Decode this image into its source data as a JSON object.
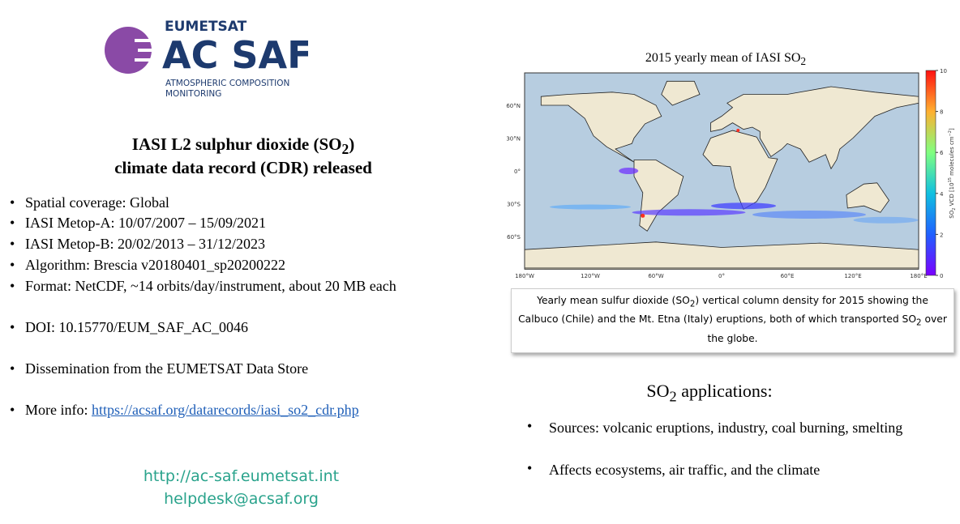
{
  "logo": {
    "org": "EUMETSAT",
    "name": "AC SAF",
    "tagline_1": "ATMOSPHERIC COMPOSITION",
    "tagline_2": "MONITORING"
  },
  "headline": {
    "line_1": [
      "IASI L2 sulphur dioxide (SO",
      "2",
      ")"
    ],
    "line_2": "climate data record (CDR) released"
  },
  "bullets": [
    "Spatial coverage: Global",
    "IASI Metop-A: 10/07/2007 – 15/09/2021",
    "IASI Metop-B: 20/02/2013 – 31/12/2023",
    "Algorithm: Brescia v20180401_sp20200222",
    "Format: NetCDF, ~14 orbits/day/instrument, about 20 MB each",
    "DOI: 10.15770/EUM_SAF_AC_0046",
    "Dissemination from the EUMETSAT Data Store"
  ],
  "more_info": {
    "label": "More info:",
    "url": "https://acsaf.org/datarecords/iasi_so2_cdr.php"
  },
  "contact": {
    "website": "http://ac-saf.eumetsat.int",
    "email": "helpdesk@acsaf.org"
  },
  "figure": {
    "title": [
      "2015 yearly mean of IASI SO",
      "2"
    ],
    "lat_labels": [
      "60°N",
      "30°N",
      "0°",
      "30°S",
      "60°S"
    ],
    "lon_labels": [
      "180°W",
      "120°W",
      "60°W",
      "0°",
      "60°E",
      "120°E",
      "180°E"
    ],
    "colorbar_ticks": [
      0,
      2,
      4,
      6,
      8,
      10
    ],
    "colorbar_label": [
      "SO",
      "2",
      " VCD [10",
      "15",
      " molecules cm",
      "−2",
      "]"
    ],
    "caption": [
      "Yearly mean sulfur dioxide (SO",
      "2",
      ") vertical column density for 2015 showing the Calbuco (Chile) and the Mt. Etna (Italy) eruptions, both of which transported SO",
      "2",
      " over the globe."
    ]
  },
  "applications": {
    "heading": [
      "SO",
      "2",
      " applications:"
    ],
    "items": [
      "Sources: volcanic eruptions, industry, coal burning, smelting",
      "Affects ecosystems, air traffic, and the climate"
    ]
  }
}
